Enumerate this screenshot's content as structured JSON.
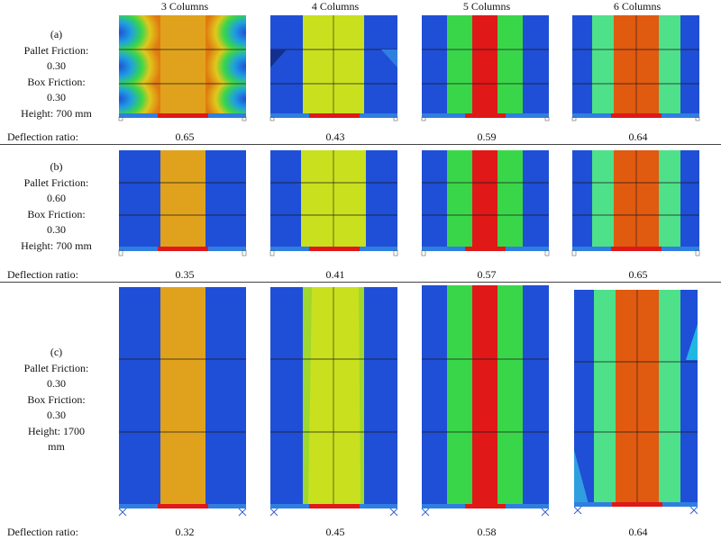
{
  "headers": [
    "3 Columns",
    "4 Columns",
    "5 Columns",
    "6 Columns"
  ],
  "rows": [
    {
      "id": "a",
      "label_lines": [
        "(a)",
        "Pallet Friction:",
        "0.30",
        "Box Friction:",
        "0.30",
        "Height: 700 mm"
      ],
      "ratio_label": "Deflection ratio:",
      "ratios": [
        "0.65",
        "0.43",
        "0.59",
        "0.64"
      ]
    },
    {
      "id": "b",
      "label_lines": [
        "(b)",
        "Pallet Friction:",
        "0.60",
        "Box Friction:",
        "0.30",
        "Height: 700 mm"
      ],
      "ratio_label": "Deflection ratio:",
      "ratios": [
        "0.35",
        "0.41",
        "0.57",
        "0.65"
      ]
    },
    {
      "id": "c",
      "label_lines": [
        "(c)",
        "Pallet Friction:",
        "0.30",
        "Box Friction:",
        "0.30",
        "Height: 1700",
        "mm"
      ],
      "ratio_label": "Deflection ratio:",
      "ratios": [
        "0.32",
        "0.45",
        "0.58",
        "0.64"
      ]
    }
  ],
  "colors": {
    "blue": "#1f4fd6",
    "light_blue": "#2f7fe0",
    "orange": "#e0a21c",
    "yellow": "#c9e01e",
    "green": "#3ad64a",
    "light_green": "#4fe08a",
    "red": "#e01818",
    "dark_orange": "#e05a10",
    "cyan": "#20b8e0",
    "edge": "#1a1a1a"
  }
}
